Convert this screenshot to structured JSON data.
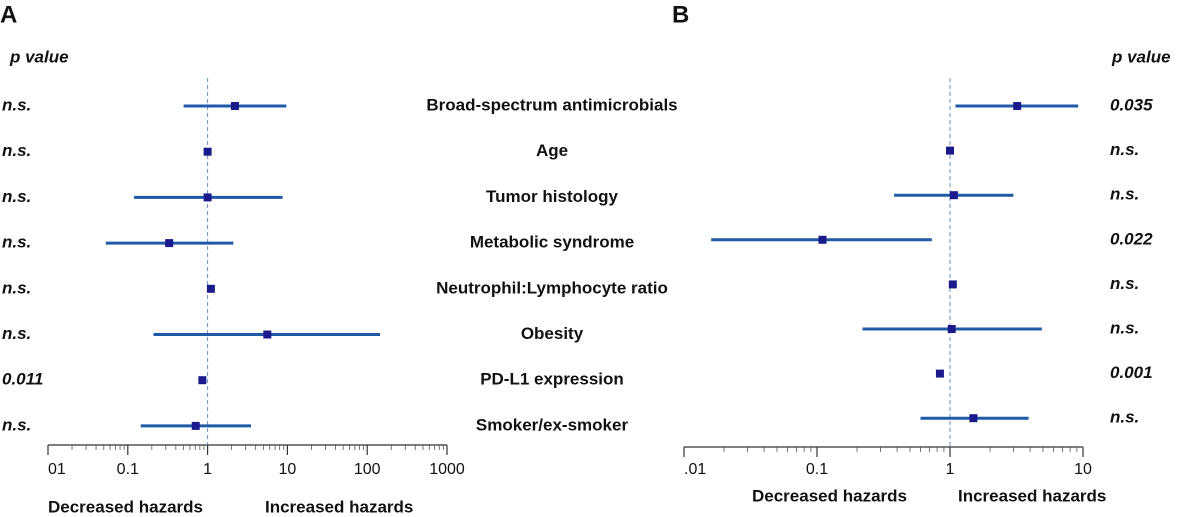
{
  "chart_data": [
    {
      "type": "forest",
      "panel": "A",
      "p_header": "p value",
      "categories": [
        "Broad-spectrum antimicrobials",
        "Age",
        "Tumor histology",
        "Metabolic syndrome",
        "Neutrophil:Lymphocyte ratio",
        "Obesity",
        "PD-L1 expression",
        "Smoker/ex-smoker"
      ],
      "values": [
        2.2,
        1.0,
        1.0,
        0.33,
        1.1,
        5.6,
        0.86,
        0.71
      ],
      "lower": [
        0.5,
        0.98,
        0.12,
        0.053,
        1.06,
        0.21,
        0.83,
        0.145
      ],
      "upper": [
        9.7,
        1.02,
        8.7,
        2.1,
        1.14,
        145,
        0.89,
        3.5
      ],
      "p_values": [
        "n.s.",
        "n.s.",
        "n.s.",
        "n.s.",
        "n.s.",
        "n.s.",
        "0.011",
        "n.s."
      ],
      "xlim": [
        0.01,
        1000
      ],
      "xticks": [
        {
          "value": 0.01,
          "label": "01"
        },
        0.1,
        1,
        10,
        100,
        1000
      ],
      "log_x": true,
      "reference_line": 1,
      "x_label_left": "Decreased hazards",
      "x_label_right": "Increased hazards",
      "color": "#1f5aa6",
      "marker_color": "#1a1a8c"
    },
    {
      "type": "forest",
      "panel": "B",
      "p_header": "p value",
      "values": [
        3.2,
        1.0,
        1.07,
        0.11,
        1.05,
        1.03,
        0.84,
        1.5
      ],
      "lower": [
        1.1,
        0.98,
        0.38,
        0.016,
        1.02,
        0.22,
        0.82,
        0.6
      ],
      "upper": [
        9.2,
        1.02,
        3.0,
        0.73,
        1.08,
        4.9,
        0.86,
        3.9
      ],
      "p_values": [
        "0.035",
        "n.s.",
        "n.s.",
        "0.022",
        "n.s.",
        "n.s.",
        "0.001",
        "n.s."
      ],
      "xlim": [
        0.01,
        10
      ],
      "xticks": [
        {
          "value": 0.01,
          "label": ".01"
        },
        0.1,
        1,
        10
      ],
      "log_x": true,
      "reference_line": 1,
      "x_label_left": "Decreased hazards",
      "x_label_right": "Increased hazards",
      "color": "#1f5aa6",
      "marker_color": "#1a1a8c"
    }
  ]
}
